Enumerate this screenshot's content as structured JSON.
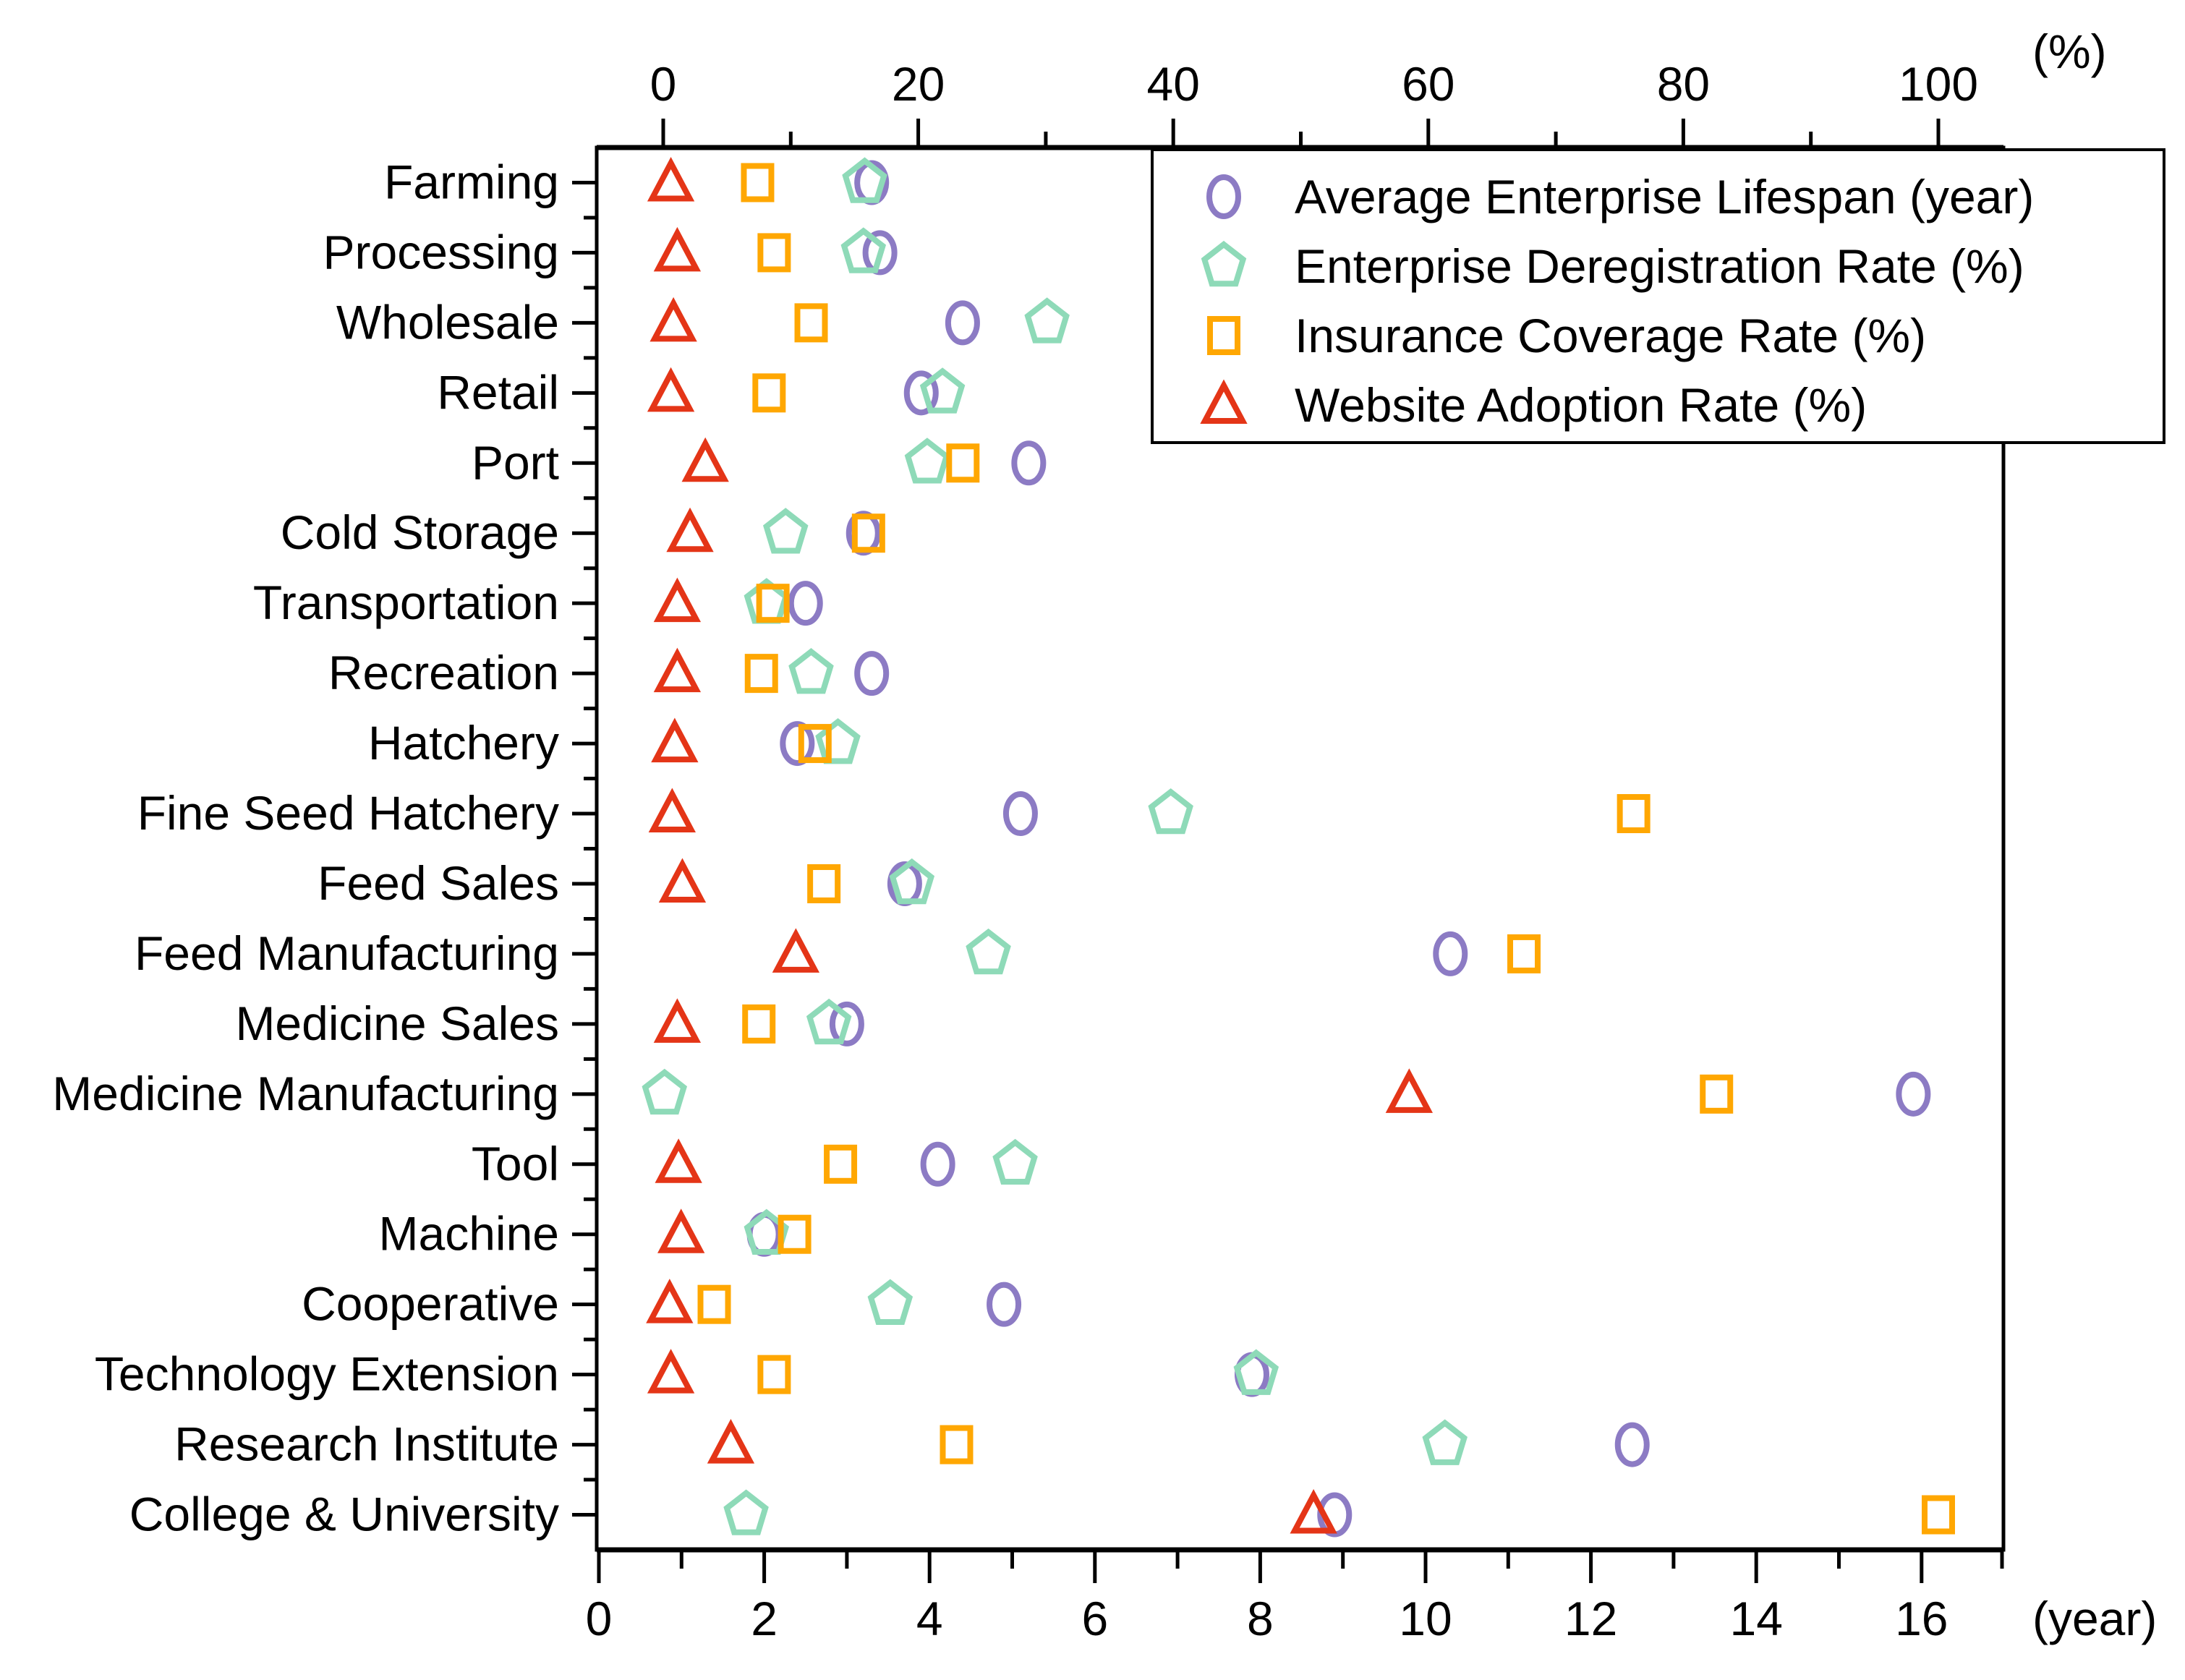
{
  "chart_data": {
    "type": "scatter",
    "orientation": "horizontal-dual-axis",
    "title": "",
    "top_axis": {
      "unit_label": "(%)",
      "min": 0,
      "max": 100,
      "major_ticks": [
        0,
        20,
        40,
        60,
        80,
        100
      ],
      "minor_step": 10
    },
    "bottom_axis": {
      "unit_label": "(year)",
      "min": 0,
      "max": 16,
      "major_ticks": [
        0,
        2,
        4,
        6,
        8,
        10,
        12,
        14,
        16
      ],
      "minor_step": 1
    },
    "grid": "off",
    "legend_position": "top-right",
    "categories": [
      "Farming",
      "Processing",
      "Wholesale",
      "Retail",
      "Port",
      "Cold Storage",
      "Transportation",
      "Recreation",
      "Hatchery",
      "Fine Seed Hatchery",
      "Feed Sales",
      "Feed Manufacturing",
      "Medicine Sales",
      "Medicine Manufacturing",
      "Tool",
      "Machine",
      "Cooperative",
      "Technology Extension",
      "Research Institute",
      "College & University"
    ],
    "series": [
      {
        "name": "Average Enterprise Lifespan (year)",
        "marker": "circle",
        "color": "#8C7BC4",
        "axis": "bottom",
        "values": [
          3.3,
          3.4,
          4.4,
          3.9,
          5.2,
          3.2,
          2.5,
          3.3,
          2.4,
          5.1,
          3.7,
          10.3,
          3.0,
          15.9,
          4.1,
          2.0,
          4.9,
          7.9,
          12.5,
          8.9
        ]
      },
      {
        "name": "Enterprise Deregistration Rate (%)",
        "marker": "pentagon",
        "color": "#8EDAB8",
        "axis": "top",
        "values": [
          15.8,
          15.7,
          30.1,
          21.9,
          20.7,
          9.6,
          8.1,
          11.6,
          13.7,
          39.8,
          19.5,
          25.5,
          13.0,
          0.1,
          27.6,
          8.1,
          17.8,
          46.5,
          61.3,
          6.5
        ]
      },
      {
        "name": "Insurance Coverage Rate (%)",
        "marker": "square",
        "color": "#FFA702",
        "axis": "top",
        "values": [
          7.4,
          8.7,
          11.6,
          8.3,
          23.5,
          16.1,
          8.6,
          7.7,
          11.9,
          76.1,
          12.6,
          67.5,
          7.5,
          82.6,
          13.9,
          10.3,
          4.0,
          8.7,
          23.0,
          100.0
        ]
      },
      {
        "name": "Website Adoption Rate (%)",
        "marker": "triangle",
        "color": "#E43517",
        "axis": "top",
        "values": [
          0.6,
          1.1,
          0.8,
          0.6,
          3.3,
          2.1,
          1.1,
          1.1,
          0.9,
          0.7,
          1.5,
          10.4,
          1.1,
          58.5,
          1.2,
          1.4,
          0.5,
          0.6,
          5.3,
          51.0
        ]
      }
    ],
    "colors": {
      "axis": "#000000",
      "text": "#000000",
      "background": "#FFFFFF"
    }
  }
}
